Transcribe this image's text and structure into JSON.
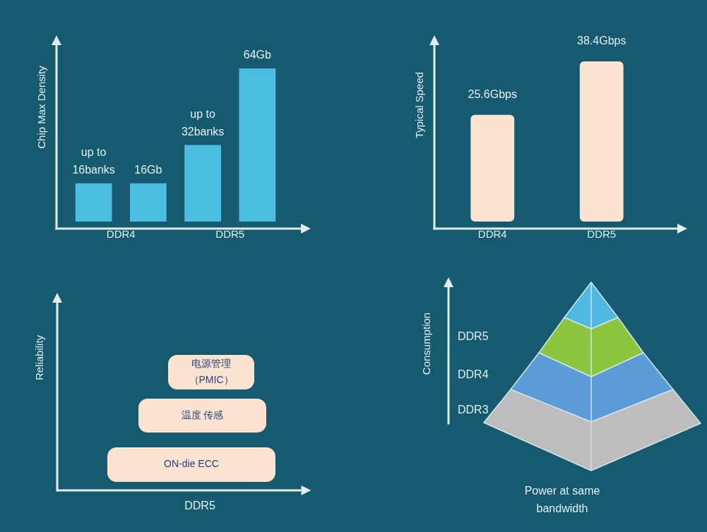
{
  "chart_data": [
    {
      "type": "bar",
      "ylabel": "Chip Max Density",
      "categories": [
        "DDR4",
        "DDR5"
      ],
      "series": [
        {
          "color": "#4bbde0",
          "values": [
            16,
            32
          ],
          "value_labels": [
            "up to\n16banks",
            "up to\n32banks"
          ]
        },
        {
          "color": "#4bbde0",
          "values": [
            16,
            64
          ],
          "value_labels": [
            "16Gb",
            "64Gb"
          ]
        }
      ],
      "tick_labels": "x"
    },
    {
      "type": "bar",
      "ylabel": "Typical Speed",
      "categories": [
        "DDR4",
        "DDR5"
      ],
      "values": [
        25.6,
        38.4
      ],
      "color": "#fbe3d2",
      "value_labels": [
        "25.6Gbps",
        "38.4Gbps"
      ],
      "tick_labels": "x"
    },
    {
      "type": "other",
      "ylabel": "Reliability",
      "xlabel": "DDR5",
      "annotations": [
        "电源管理（PMIC）",
        "温度 传感",
        "ON-die ECC"
      ]
    },
    {
      "type": "other",
      "ylabel": "Consumption",
      "xlabel": "Power at same\nbandwidth",
      "annotations": [
        "DDR5",
        "DDR4",
        "DDR3"
      ]
    }
  ]
}
